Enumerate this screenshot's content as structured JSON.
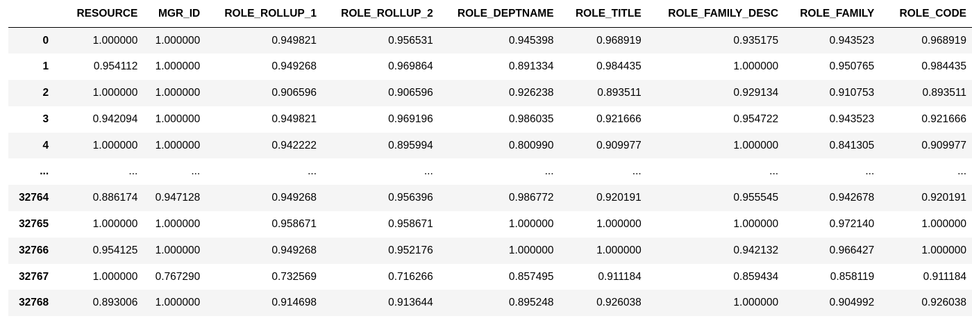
{
  "table": {
    "index_header": "",
    "columns": [
      "RESOURCE",
      "MGR_ID",
      "ROLE_ROLLUP_1",
      "ROLE_ROLLUP_2",
      "ROLE_DEPTNAME",
      "ROLE_TITLE",
      "ROLE_FAMILY_DESC",
      "ROLE_FAMILY",
      "ROLE_CODE"
    ],
    "rows": [
      {
        "index": "0",
        "cells": [
          "1.000000",
          "1.000000",
          "0.949821",
          "0.956531",
          "0.945398",
          "0.968919",
          "0.935175",
          "0.943523",
          "0.968919"
        ]
      },
      {
        "index": "1",
        "cells": [
          "0.954112",
          "1.000000",
          "0.949268",
          "0.969864",
          "0.891334",
          "0.984435",
          "1.000000",
          "0.950765",
          "0.984435"
        ]
      },
      {
        "index": "2",
        "cells": [
          "1.000000",
          "1.000000",
          "0.906596",
          "0.906596",
          "0.926238",
          "0.893511",
          "0.929134",
          "0.910753",
          "0.893511"
        ]
      },
      {
        "index": "3",
        "cells": [
          "0.942094",
          "1.000000",
          "0.949821",
          "0.969196",
          "0.986035",
          "0.921666",
          "0.954722",
          "0.943523",
          "0.921666"
        ]
      },
      {
        "index": "4",
        "cells": [
          "1.000000",
          "1.000000",
          "0.942222",
          "0.895994",
          "0.800990",
          "0.909977",
          "1.000000",
          "0.841305",
          "0.909977"
        ]
      },
      {
        "index": "...",
        "cells": [
          "...",
          "...",
          "...",
          "...",
          "...",
          "...",
          "...",
          "...",
          "..."
        ]
      },
      {
        "index": "32764",
        "cells": [
          "0.886174",
          "0.947128",
          "0.949268",
          "0.956396",
          "0.986772",
          "0.920191",
          "0.955545",
          "0.942678",
          "0.920191"
        ]
      },
      {
        "index": "32765",
        "cells": [
          "1.000000",
          "1.000000",
          "0.958671",
          "0.958671",
          "1.000000",
          "1.000000",
          "1.000000",
          "0.972140",
          "1.000000"
        ]
      },
      {
        "index": "32766",
        "cells": [
          "0.954125",
          "1.000000",
          "0.949268",
          "0.952176",
          "1.000000",
          "1.000000",
          "0.942132",
          "0.966427",
          "1.000000"
        ]
      },
      {
        "index": "32767",
        "cells": [
          "1.000000",
          "0.767290",
          "0.732569",
          "0.716266",
          "0.857495",
          "0.911184",
          "0.859434",
          "0.858119",
          "0.911184"
        ]
      },
      {
        "index": "32768",
        "cells": [
          "0.893006",
          "1.000000",
          "0.914698",
          "0.913644",
          "0.895248",
          "0.926038",
          "1.000000",
          "0.904992",
          "0.926038"
        ]
      }
    ]
  }
}
